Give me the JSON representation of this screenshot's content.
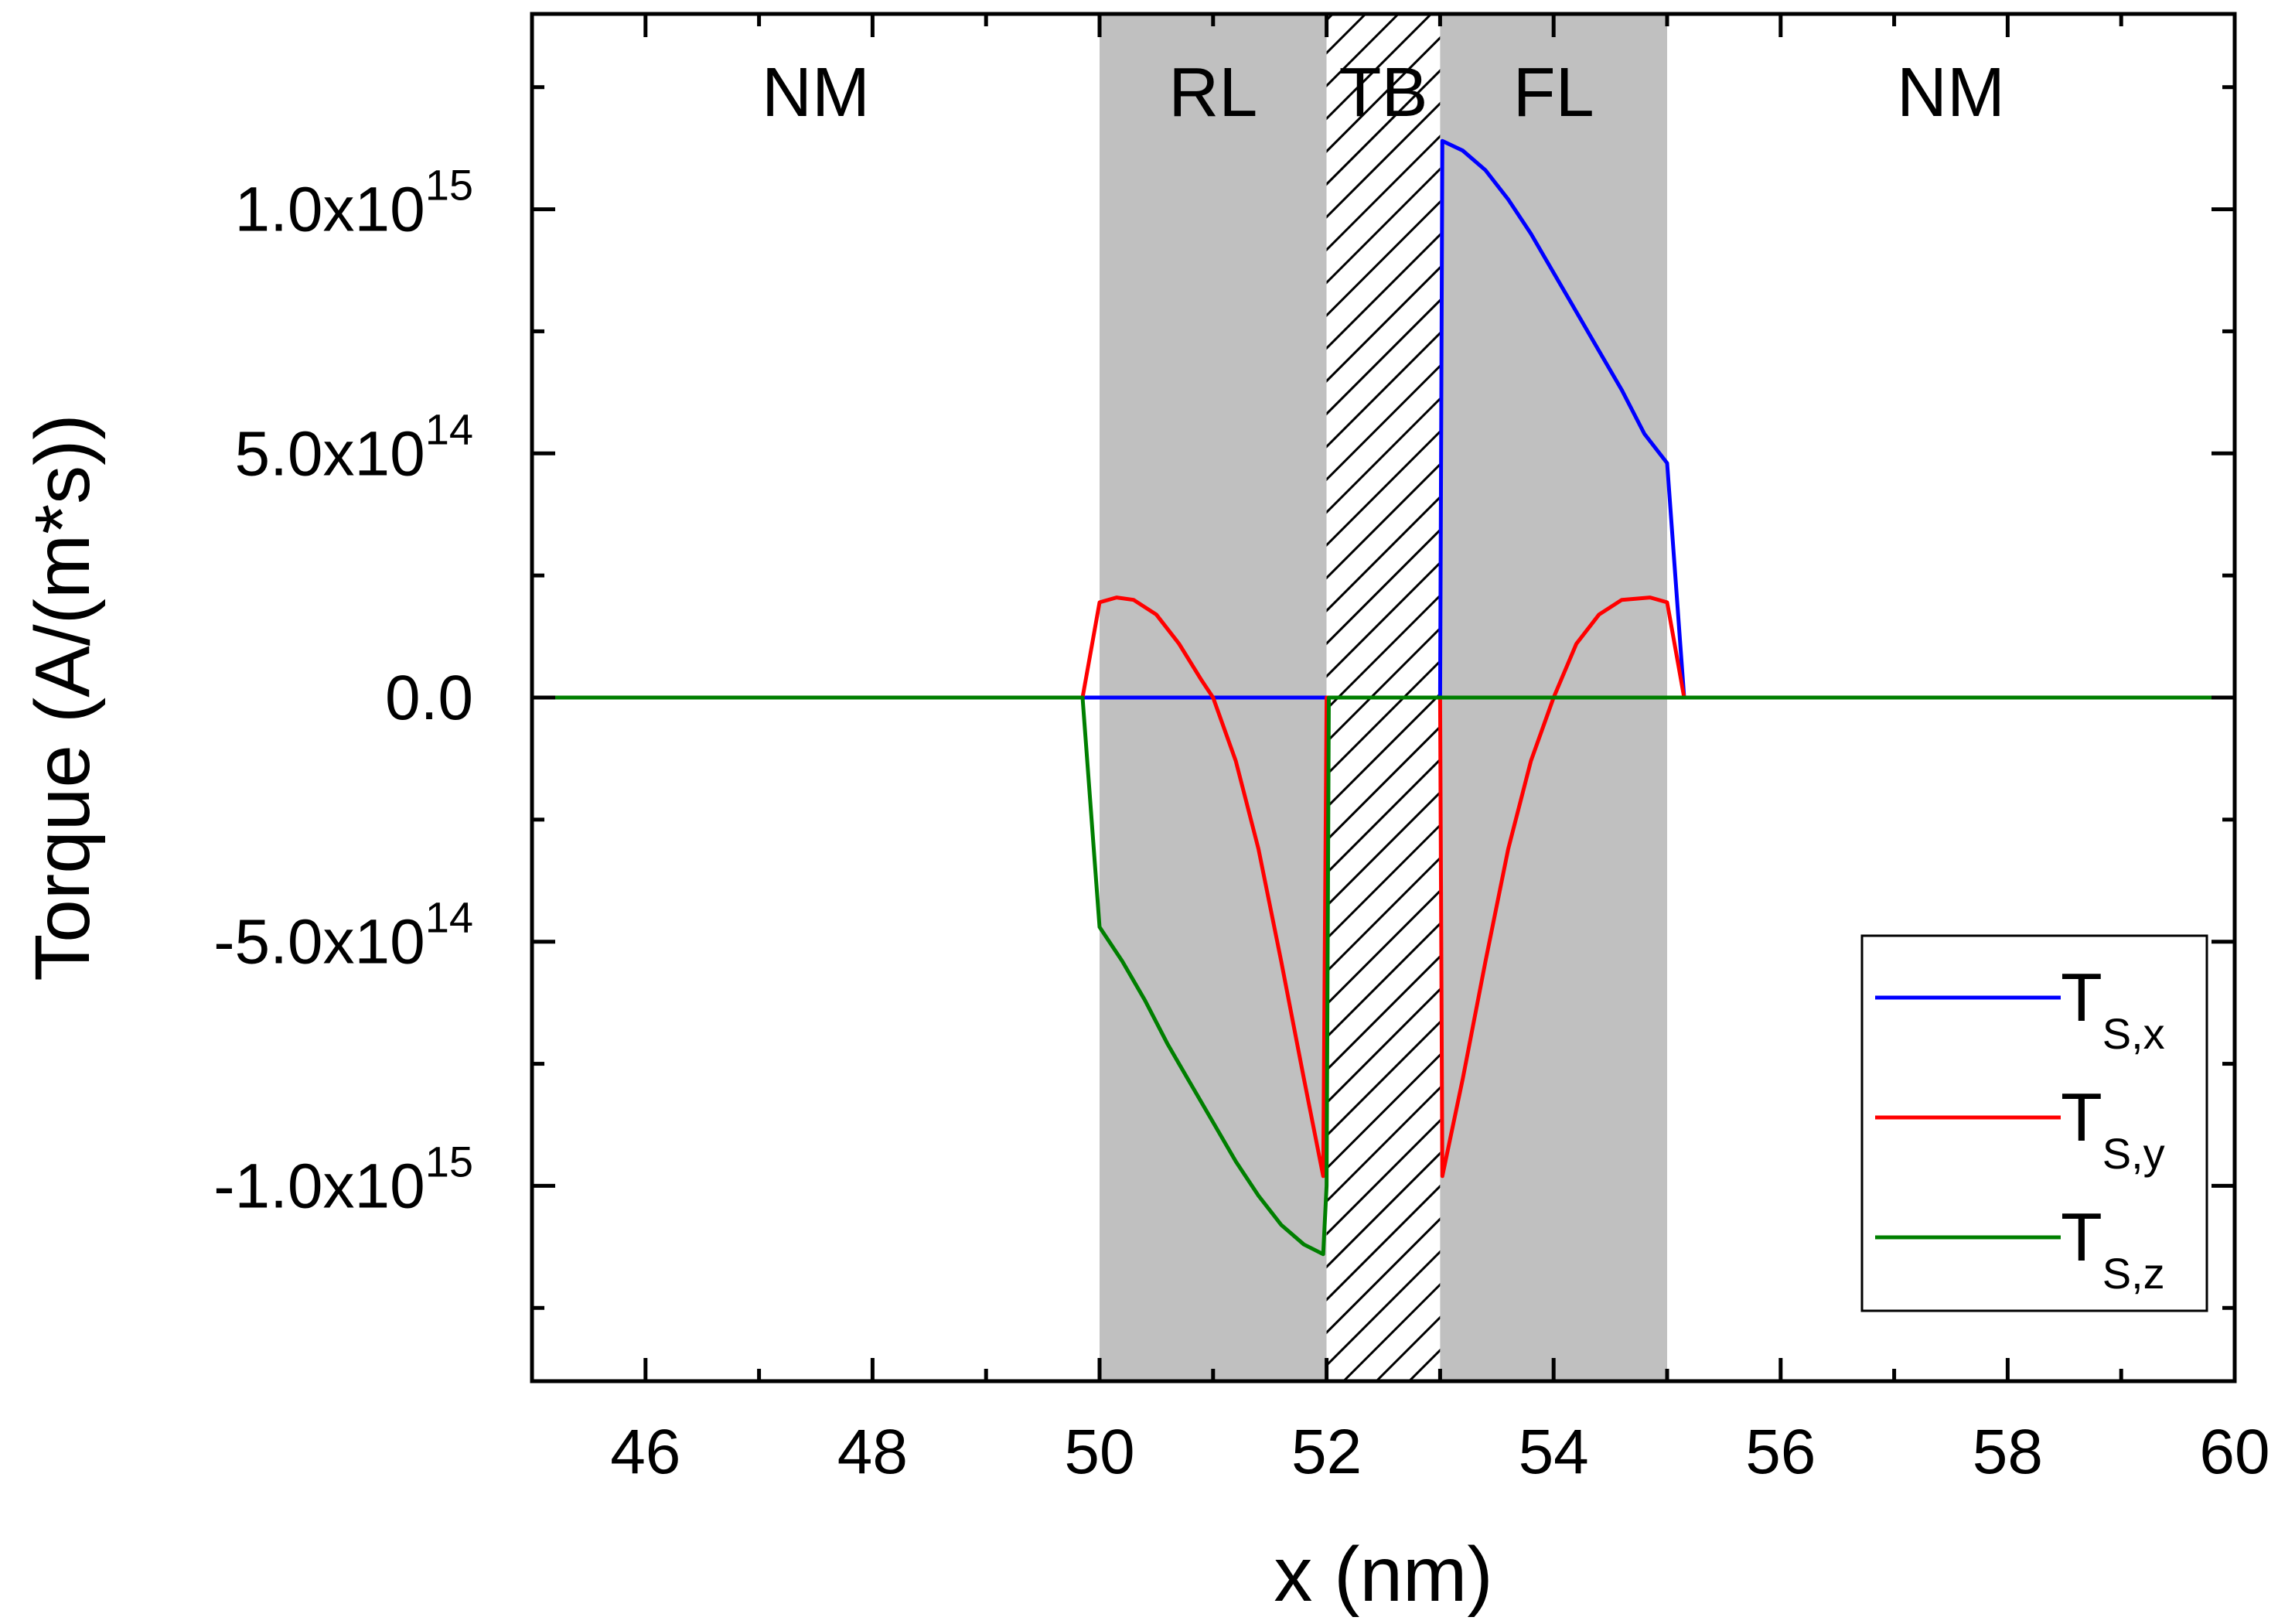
{
  "chart_data": {
    "type": "line",
    "title": "",
    "xlabel": "x (nm)",
    "ylabel": "Torque (A/(m*s))",
    "xlim": [
      45,
      60
    ],
    "ylim": [
      -1400000000000000.0,
      1400000000000000.0
    ],
    "x_major_ticks": [
      46,
      48,
      50,
      52,
      54,
      56,
      58,
      60
    ],
    "x_minor_ticks": [
      45,
      47,
      49,
      51,
      53,
      55,
      57,
      59
    ],
    "y_major_ticks": [
      {
        "value": 1000000000000000.0,
        "mantissa": "1.0x10",
        "exp": "15"
      },
      {
        "value": 500000000000000.0,
        "mantissa": "5.0x10",
        "exp": "14"
      },
      {
        "value": 0,
        "mantissa": "0.0",
        "exp": ""
      },
      {
        "value": -500000000000000.0,
        "mantissa": "-5.0x10",
        "exp": "14"
      },
      {
        "value": -1000000000000000.0,
        "mantissa": "-1.0x10",
        "exp": "15"
      }
    ],
    "y_minor_ticks": [
      1250000000000000.0,
      750000000000000.0,
      250000000000000.0,
      -250000000000000.0,
      -750000000000000.0,
      -1250000000000000.0
    ],
    "regions": [
      {
        "label": "NM",
        "x0": 45,
        "x1": 50,
        "fill": "none"
      },
      {
        "label": "RL",
        "x0": 50,
        "x1": 52,
        "fill": "gray"
      },
      {
        "label": "TB",
        "x0": 52,
        "x1": 53,
        "fill": "hatch"
      },
      {
        "label": "FL",
        "x0": 53,
        "x1": 55,
        "fill": "gray"
      },
      {
        "label": "NM",
        "x0": 55,
        "x1": 60,
        "fill": "none"
      }
    ],
    "series": [
      {
        "name": "T_S,x",
        "legend_main": "T",
        "legend_sub": "S,x",
        "color": "#0000ff",
        "x": [
          45,
          53.0,
          53.02,
          53.2,
          53.4,
          53.6,
          53.8,
          54.0,
          54.2,
          54.4,
          54.6,
          54.8,
          55.0,
          55.15,
          60
        ],
        "y": [
          0,
          0,
          1140000000000000.0,
          1120000000000000.0,
          1080000000000000.0,
          1020000000000000.0,
          950000000000000.0,
          870000000000000.0,
          790000000000000.0,
          710000000000000.0,
          630000000000000.0,
          540000000000000.0,
          480000000000000.0,
          0,
          0
        ]
      },
      {
        "name": "T_S,y",
        "legend_main": "T",
        "legend_sub": "S,y",
        "color": "#ff0000",
        "x": [
          45,
          49.85,
          50.0,
          50.15,
          50.3,
          50.5,
          50.7,
          50.9,
          51.0,
          51.2,
          51.4,
          51.6,
          51.8,
          51.97,
          52.0,
          53.0,
          53.02,
          53.2,
          53.4,
          53.6,
          53.8,
          54.0,
          54.2,
          54.4,
          54.6,
          54.85,
          55.0,
          55.15,
          60
        ],
        "y": [
          0,
          0,
          195000000000000.0,
          205000000000000.0,
          200000000000000.0,
          170000000000000.0,
          110000000000000.0,
          35000000000000.0,
          0,
          -130000000000000.0,
          -310000000000000.0,
          -540000000000000.0,
          -780000000000000.0,
          -980000000000000.0,
          0,
          0,
          -980000000000000.0,
          -780000000000000.0,
          -540000000000000.0,
          -310000000000000.0,
          -130000000000000.0,
          0,
          110000000000000.0,
          170000000000000.0,
          200000000000000.0,
          205000000000000.0,
          195000000000000.0,
          0,
          0
        ]
      },
      {
        "name": "T_S,z",
        "legend_main": "T",
        "legend_sub": "S,z",
        "color": "#007f00",
        "x": [
          45,
          49.85,
          50.0,
          50.2,
          50.4,
          50.6,
          50.8,
          51.0,
          51.2,
          51.4,
          51.6,
          51.8,
          51.97,
          52.0,
          52.02,
          60
        ],
        "y": [
          0,
          0,
          -470000000000000.0,
          -540000000000000.0,
          -620000000000000.0,
          -710000000000000.0,
          -790000000000000.0,
          -870000000000000.0,
          -950000000000000.0,
          -1020000000000000.0,
          -1080000000000000.0,
          -1120000000000000.0,
          -1140000000000000.0,
          -1000000000000000.0,
          0,
          0
        ]
      }
    ],
    "legend_position": "bottom-right",
    "grid": false
  }
}
